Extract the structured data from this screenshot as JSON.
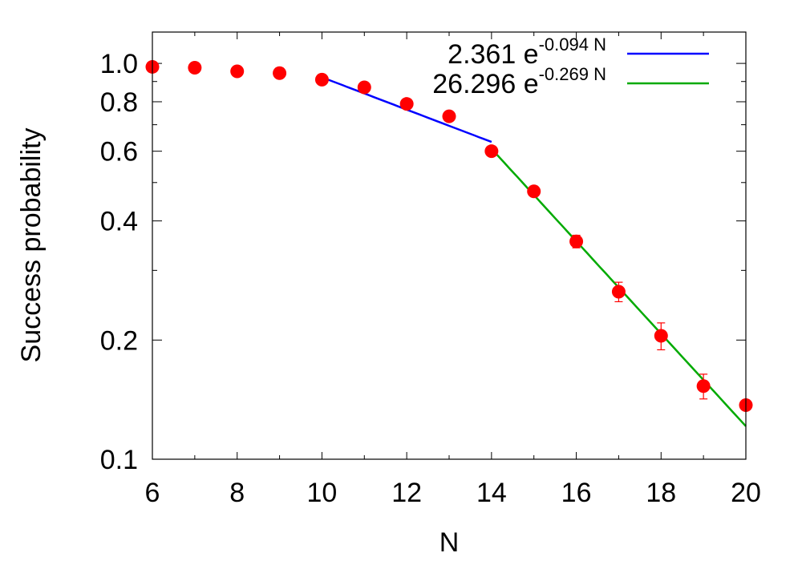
{
  "chart_data": {
    "type": "scatter",
    "title": "",
    "xlabel": "N",
    "ylabel": "Success probability",
    "xlim": [
      6,
      20
    ],
    "ylim": [
      0.1,
      1.2
    ],
    "yscale": "log",
    "x_ticks": [
      "6",
      "8",
      "10",
      "12",
      "14",
      "16",
      "18",
      "20"
    ],
    "y_ticks": [
      "0.1",
      "0.2",
      "0.4",
      "0.6",
      "0.8",
      "1.0"
    ],
    "legend_position": "top-right",
    "points": {
      "color": "#ff0000",
      "x": [
        6,
        7,
        8,
        9,
        10,
        11,
        12,
        13,
        14,
        15,
        16,
        17,
        18,
        19,
        20
      ],
      "y": [
        0.98,
        0.975,
        0.955,
        0.945,
        0.91,
        0.87,
        0.79,
        0.735,
        0.6,
        0.475,
        0.355,
        0.265,
        0.205,
        0.153,
        0.137
      ],
      "err": [
        0,
        0,
        0,
        0,
        0,
        0,
        0,
        0,
        0,
        0,
        0.013,
        0.015,
        0.016,
        0.011,
        0
      ]
    },
    "fits": [
      {
        "name_main": "2.361 e",
        "name_exp": "-0.094 N",
        "a": 2.361,
        "b": -0.094,
        "x_range": [
          10,
          14
        ],
        "color": "#0000ff"
      },
      {
        "name_main": "26.296 e",
        "name_exp": "-0.269 N",
        "a": 26.296,
        "b": -0.269,
        "x_range": [
          14,
          20
        ],
        "color": "#00aa00"
      }
    ]
  }
}
